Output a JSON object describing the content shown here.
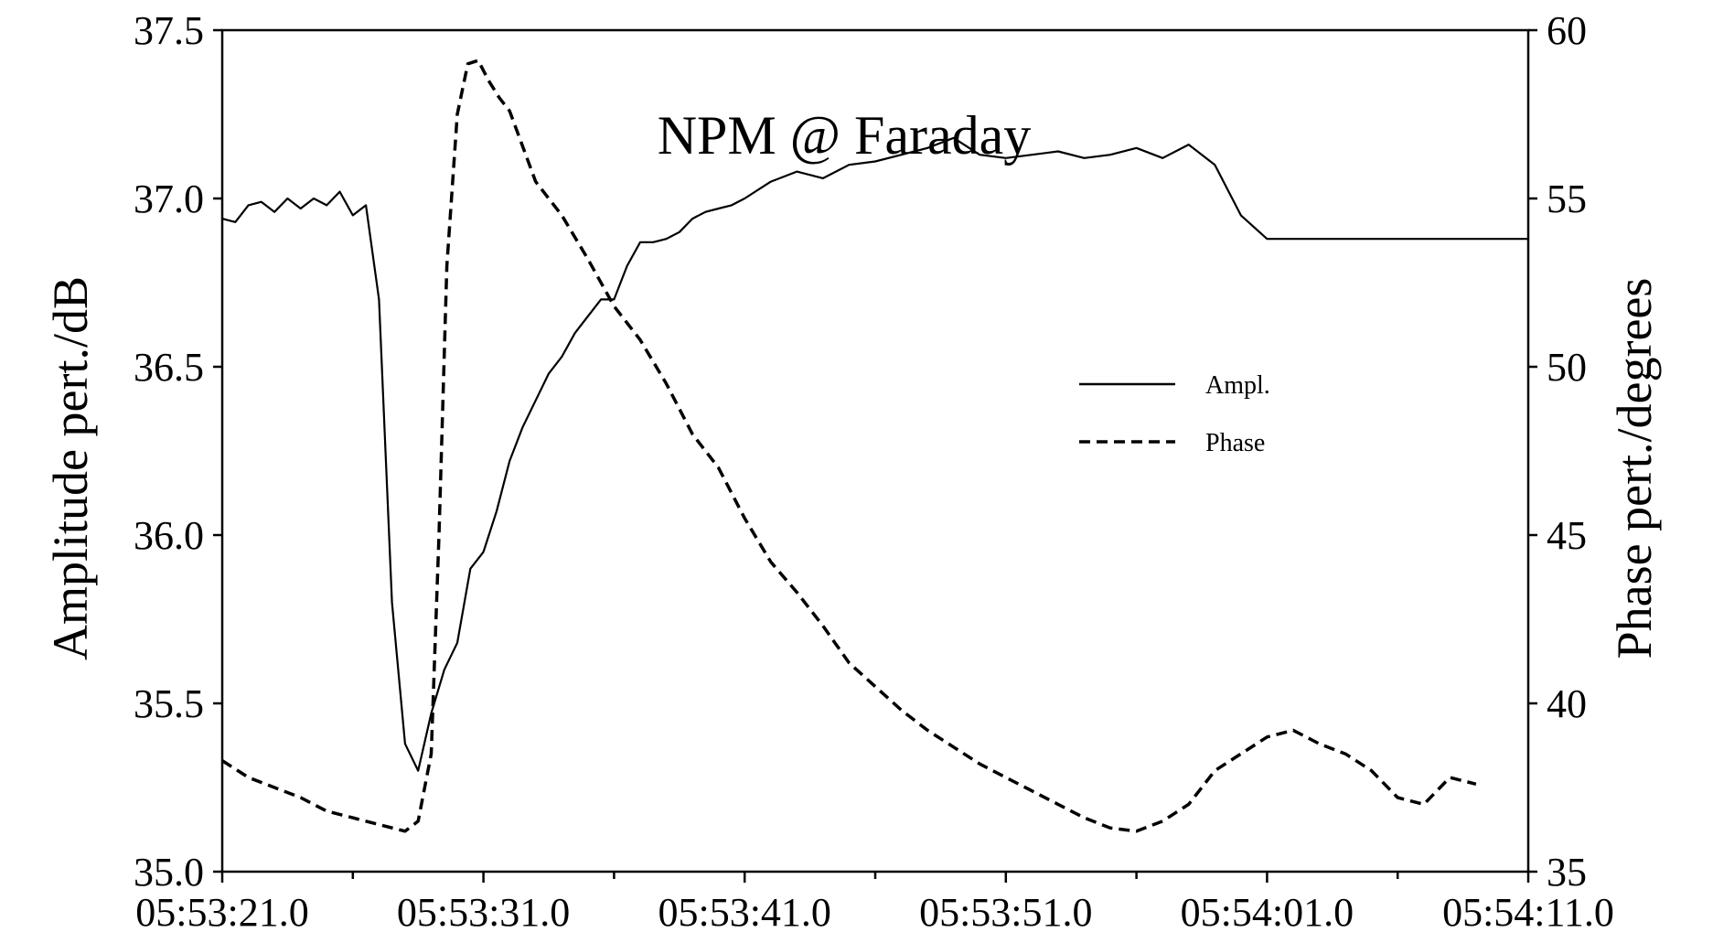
{
  "chart_data": {
    "type": "line",
    "title": "NPM @ Faraday",
    "xlabel": "",
    "ylabel": "Amplitude pert./dB",
    "y2label": "Phase pert./degrees",
    "x_tick_labels": [
      "05:53:21.0",
      "05:53:31.0",
      "05:53:41.0",
      "05:53:51.0",
      "05:54:01.0",
      "05:54:11.0"
    ],
    "x_range_seconds_label": [
      "05:53:21.0",
      "05:54:11.0"
    ],
    "ylim": [
      35.0,
      37.5
    ],
    "y_ticks": [
      "35.0",
      "35.5",
      "36.0",
      "36.5",
      "37.0",
      "37.5"
    ],
    "y2lim": [
      35,
      60
    ],
    "y2_ticks": [
      "35",
      "40",
      "45",
      "50",
      "55",
      "60"
    ],
    "grid": false,
    "legend_position": "center-right",
    "legend": [
      "Ampl.",
      "Phase"
    ],
    "series": [
      {
        "name": "Ampl.",
        "axis": "left",
        "line_style": "solid",
        "x_seconds_after_05:53:21.0": [
          0,
          0.5,
          1,
          1.5,
          2,
          2.5,
          3,
          3.5,
          4,
          4.5,
          5,
          5.5,
          6,
          6.5,
          7,
          7.5,
          8,
          8.5,
          9,
          9.5,
          10,
          10.5,
          11,
          11.5,
          12,
          12.5,
          13,
          13.5,
          14,
          14.5,
          15,
          15.5,
          16,
          16.5,
          17,
          17.5,
          18,
          18.5,
          19,
          19.5,
          20,
          21,
          22,
          23,
          24,
          25,
          26,
          27,
          28,
          29,
          30,
          31,
          32,
          33,
          34,
          35,
          36,
          37,
          38,
          39,
          40,
          41,
          42,
          43,
          44,
          45,
          46,
          47,
          48,
          49,
          50
        ],
        "values": [
          36.94,
          36.93,
          36.98,
          36.99,
          36.96,
          37.0,
          36.97,
          37.0,
          36.98,
          37.02,
          36.95,
          36.98,
          36.7,
          35.8,
          35.38,
          35.3,
          35.47,
          35.6,
          35.68,
          35.9,
          35.95,
          36.07,
          36.22,
          36.32,
          36.4,
          36.48,
          36.53,
          36.6,
          36.65,
          36.7,
          36.7,
          36.8,
          36.87,
          36.87,
          36.88,
          36.9,
          36.94,
          36.96,
          36.97,
          36.98,
          37.0,
          37.05,
          37.08,
          37.06,
          37.1,
          37.11,
          37.13,
          37.15,
          37.18,
          37.13,
          37.12,
          37.13,
          37.14,
          37.12,
          37.13,
          37.15,
          37.12,
          37.16,
          37.1,
          36.95,
          36.88,
          36.88,
          36.88,
          36.88,
          36.88,
          36.88,
          36.88,
          36.88,
          36.88,
          36.88,
          36.88
        ]
      },
      {
        "name": "Phase",
        "axis": "right",
        "line_style": "dashed",
        "x_seconds_after_05:53:21.0": [
          0,
          1,
          2,
          3,
          4,
          5,
          6,
          7,
          7.5,
          8,
          8.3,
          8.6,
          9,
          9.4,
          9.8,
          10.2,
          10.6,
          11,
          12,
          13,
          14,
          15,
          16,
          17,
          18,
          19,
          20,
          21,
          22,
          23,
          24,
          25,
          26,
          27,
          28,
          29,
          30,
          31,
          32,
          33,
          34,
          35,
          36,
          37,
          38,
          39,
          40,
          41,
          42,
          43,
          44,
          44.5,
          45,
          46,
          47,
          48
        ],
        "values": [
          38.3,
          37.8,
          37.5,
          37.2,
          36.8,
          36.6,
          36.4,
          36.2,
          36.5,
          38.5,
          45,
          53,
          57.5,
          59,
          59.1,
          58.5,
          58,
          57.6,
          55.5,
          54.5,
          53.2,
          51.8,
          50.8,
          49.5,
          48,
          47,
          45.5,
          44.2,
          43.3,
          42.3,
          41.2,
          40.5,
          39.8,
          39.2,
          38.7,
          38.2,
          37.8,
          37.4,
          37.0,
          36.6,
          36.3,
          36.2,
          36.5,
          37.0,
          38.0,
          38.5,
          39.0,
          39.2,
          38.8,
          38.5,
          38.0,
          37.6,
          37.2,
          37.0,
          37.8,
          37.6
        ]
      }
    ]
  }
}
